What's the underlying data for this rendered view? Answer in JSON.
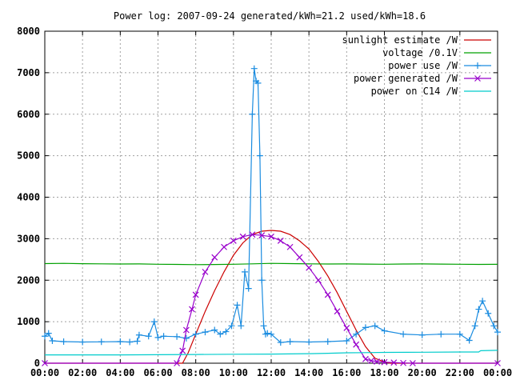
{
  "chart_data": {
    "type": "line",
    "title": "Power log: 2007-09-24 generated/kWh=21.2 used/kWh=18.6",
    "xlabel": "",
    "ylabel": "",
    "x_unit": "hours",
    "xlim": [
      0,
      24
    ],
    "ylim": [
      0,
      8000
    ],
    "grid": true,
    "legend_position": "top-right",
    "x_ticks": [
      {
        "value": 0,
        "label": "00:00"
      },
      {
        "value": 2,
        "label": "02:00"
      },
      {
        "value": 4,
        "label": "04:00"
      },
      {
        "value": 6,
        "label": "06:00"
      },
      {
        "value": 8,
        "label": "08:00"
      },
      {
        "value": 10,
        "label": "10:00"
      },
      {
        "value": 12,
        "label": "12:00"
      },
      {
        "value": 14,
        "label": "14:00"
      },
      {
        "value": 16,
        "label": "16:00"
      },
      {
        "value": 18,
        "label": "18:00"
      },
      {
        "value": 20,
        "label": "20:00"
      },
      {
        "value": 22,
        "label": "22:00"
      },
      {
        "value": 24,
        "label": "00:00"
      }
    ],
    "y_ticks": [
      {
        "value": 0,
        "label": "0"
      },
      {
        "value": 1000,
        "label": "1000"
      },
      {
        "value": 2000,
        "label": "2000"
      },
      {
        "value": 3000,
        "label": "3000"
      },
      {
        "value": 4000,
        "label": "4000"
      },
      {
        "value": 5000,
        "label": "5000"
      },
      {
        "value": 6000,
        "label": "6000"
      },
      {
        "value": 7000,
        "label": "7000"
      },
      {
        "value": 8000,
        "label": "8000"
      }
    ],
    "series": [
      {
        "name": "sunlight estimate /W",
        "color": "#cc0000",
        "marker": "none",
        "x": [
          0,
          7.3,
          7.6,
          8.0,
          8.5,
          9.0,
          9.5,
          10.0,
          10.5,
          11.0,
          11.5,
          12.0,
          12.5,
          13.0,
          13.5,
          14.0,
          14.5,
          15.0,
          15.5,
          16.0,
          16.5,
          17.0,
          17.5,
          18.0,
          18.3,
          24
        ],
        "values": [
          0,
          0,
          250,
          700,
          1250,
          1750,
          2200,
          2600,
          2900,
          3100,
          3180,
          3200,
          3180,
          3100,
          2950,
          2750,
          2450,
          2100,
          1700,
          1250,
          800,
          400,
          120,
          30,
          0,
          0
        ]
      },
      {
        "name": "voltage /0.1V",
        "color": "#00a000",
        "marker": "none",
        "x": [
          0,
          1,
          2,
          3,
          4,
          5,
          6,
          7,
          8,
          9,
          10,
          11,
          12,
          13,
          14,
          15,
          16,
          17,
          18,
          19,
          20,
          21,
          22,
          23,
          24
        ],
        "values": [
          2400,
          2405,
          2398,
          2395,
          2390,
          2392,
          2385,
          2380,
          2375,
          2378,
          2385,
          2395,
          2405,
          2400,
          2395,
          2390,
          2392,
          2388,
          2385,
          2390,
          2392,
          2388,
          2385,
          2380,
          2382
        ]
      },
      {
        "name": "power use /W",
        "color": "#1a8ce0",
        "marker": "plus",
        "x": [
          0,
          0.2,
          0.4,
          1,
          2,
          3,
          4,
          4.5,
          4.9,
          5.0,
          5.5,
          5.8,
          6.0,
          6.3,
          7.0,
          7.5,
          8.0,
          8.5,
          9.0,
          9.3,
          9.6,
          9.9,
          10.2,
          10.4,
          10.6,
          10.8,
          11.0,
          11.1,
          11.2,
          11.3,
          11.4,
          11.5,
          11.6,
          11.7,
          11.8,
          12.0,
          12.5,
          13.0,
          14.0,
          15.0,
          16.0,
          16.5,
          17.0,
          17.5,
          18.0,
          19.0,
          20.0,
          21.0,
          22.0,
          22.5,
          22.8,
          23.0,
          23.2,
          23.5,
          23.8,
          24
        ],
        "values": [
          650,
          720,
          540,
          520,
          510,
          515,
          520,
          510,
          530,
          680,
          650,
          1000,
          620,
          650,
          640,
          600,
          700,
          750,
          800,
          700,
          760,
          900,
          1400,
          900,
          2200,
          1800,
          6000,
          7100,
          6800,
          6750,
          5000,
          2000,
          900,
          700,
          720,
          700,
          500,
          520,
          510,
          520,
          540,
          700,
          860,
          900,
          780,
          700,
          680,
          700,
          700,
          550,
          900,
          1300,
          1500,
          1200,
          900,
          750
        ]
      },
      {
        "name": "power generated /W",
        "color": "#9900cc",
        "marker": "cross",
        "x": [
          0,
          7.0,
          7.3,
          7.5,
          7.8,
          8.0,
          8.5,
          9.0,
          9.5,
          10.0,
          10.5,
          11.0,
          11.5,
          12.0,
          12.5,
          13.0,
          13.5,
          14.0,
          14.5,
          15.0,
          15.5,
          16.0,
          16.5,
          17.0,
          17.3,
          17.6,
          18.0,
          18.5,
          19.0,
          19.5,
          24
        ],
        "values": [
          0,
          0,
          300,
          800,
          1300,
          1650,
          2200,
          2550,
          2800,
          2950,
          3050,
          3100,
          3080,
          3050,
          2950,
          2800,
          2550,
          2300,
          2000,
          1650,
          1250,
          850,
          450,
          100,
          60,
          40,
          25,
          15,
          5,
          0,
          0
        ]
      },
      {
        "name": "power on C14 /W",
        "color": "#00cccc",
        "marker": "none",
        "x": [
          0,
          2,
          4,
          6,
          8,
          10,
          12,
          14,
          15,
          16,
          17,
          18,
          20,
          22,
          23.0,
          23.1,
          24
        ],
        "values": [
          200,
          200,
          200,
          205,
          210,
          215,
          220,
          230,
          240,
          250,
          255,
          260,
          265,
          270,
          270,
          300,
          310
        ]
      }
    ]
  }
}
